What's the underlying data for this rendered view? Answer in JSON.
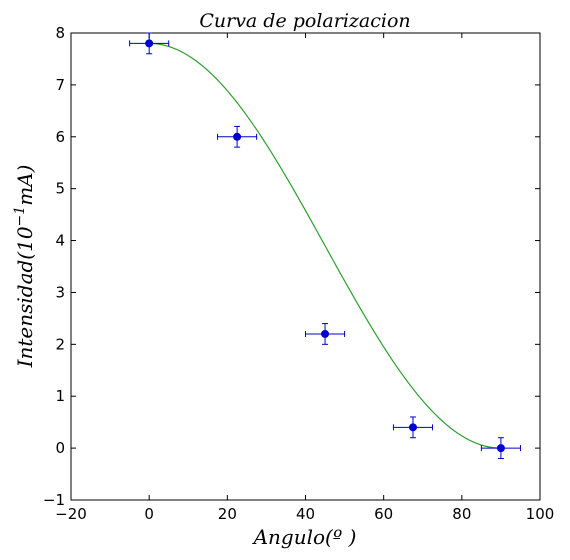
{
  "chart_data": {
    "type": "scatter",
    "title": "Curva de polarizacion",
    "xlabel": "Angulo(º )",
    "ylabel_main": "Intensidad(10",
    "ylabel_sup": "−1",
    "ylabel_unit": "mA)",
    "xlim": [
      -20,
      100
    ],
    "ylim": [
      -1,
      8
    ],
    "xticks": [
      -20,
      0,
      20,
      40,
      60,
      80,
      100
    ],
    "yticks": [
      -1,
      0,
      1,
      2,
      3,
      4,
      5,
      6,
      7,
      8
    ],
    "grid": false,
    "legend": "none",
    "series": [
      {
        "kind": "errorbar",
        "color": "#0000cc",
        "x": [
          0,
          22.5,
          45,
          67.5,
          90
        ],
        "y": [
          7.8,
          6.0,
          2.2,
          0.4,
          0.0
        ],
        "xerr": [
          5,
          5,
          5,
          5,
          5
        ],
        "yerr": [
          0.2,
          0.2,
          0.2,
          0.2,
          0.2
        ]
      },
      {
        "kind": "fit-curve",
        "color": "#2e9e2e",
        "function": "7.8*cos^2(x)",
        "x_range": [
          0,
          90
        ]
      }
    ]
  }
}
